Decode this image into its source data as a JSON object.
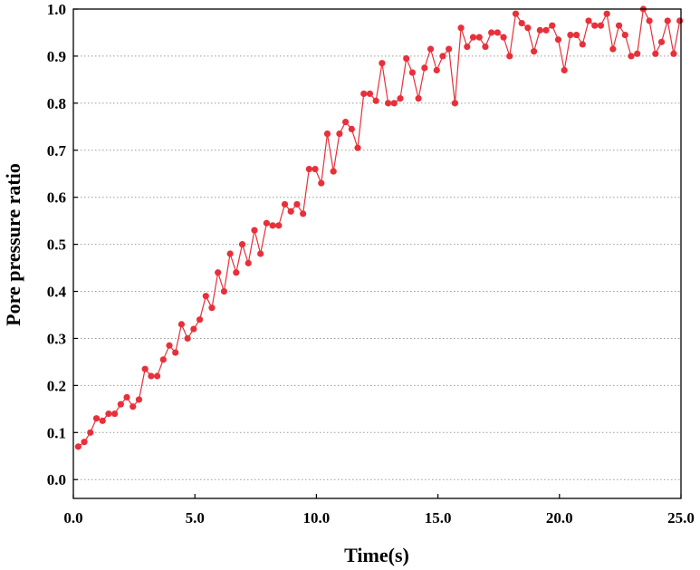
{
  "chart_data": {
    "type": "line",
    "xlabel": "Time(s)",
    "ylabel": "Pore pressure ratio",
    "xlim": [
      0,
      25
    ],
    "ylim": [
      -0.04,
      1.0
    ],
    "xticks": [
      0,
      5,
      10,
      15,
      20,
      25
    ],
    "xtick_labels": [
      "0.0",
      "5.0",
      "10.0",
      "15.0",
      "20.0",
      "25.0"
    ],
    "yticks": [
      0.0,
      0.1,
      0.2,
      0.3,
      0.4,
      0.5,
      0.6,
      0.7,
      0.8,
      0.9,
      1.0
    ],
    "ytick_labels": [
      "0.0",
      "0.1",
      "0.2",
      "0.3",
      "0.4",
      "0.5",
      "0.6",
      "0.7",
      "0.8",
      "0.9",
      "1.0"
    ],
    "grid": "horizontal dotted",
    "series": [
      {
        "color": "#e8303a",
        "marker": "circle",
        "x": [
          0.2,
          0.45,
          0.7,
          0.95,
          1.2,
          1.45,
          1.7,
          1.95,
          2.2,
          2.45,
          2.7,
          2.95,
          3.2,
          3.45,
          3.7,
          3.95,
          4.2,
          4.45,
          4.7,
          4.95,
          5.2,
          5.45,
          5.7,
          5.95,
          6.2,
          6.45,
          6.7,
          6.95,
          7.2,
          7.45,
          7.7,
          7.95,
          8.2,
          8.45,
          8.7,
          8.95,
          9.2,
          9.45,
          9.7,
          9.95,
          10.2,
          10.45,
          10.7,
          10.95,
          11.2,
          11.45,
          11.7,
          11.95,
          12.2,
          12.45,
          12.7,
          12.95,
          13.2,
          13.45,
          13.7,
          13.95,
          14.2,
          14.45,
          14.7,
          14.95,
          15.2,
          15.45,
          15.7,
          15.95,
          16.2,
          16.45,
          16.7,
          16.95,
          17.2,
          17.45,
          17.7,
          17.95,
          18.2,
          18.45,
          18.7,
          18.95,
          19.2,
          19.45,
          19.7,
          19.95,
          20.2,
          20.45,
          20.7,
          20.95,
          21.2,
          21.45,
          21.7,
          21.95,
          22.2,
          22.45,
          22.7,
          22.95,
          23.2,
          23.45,
          23.7,
          23.95,
          24.2,
          24.45,
          24.7,
          24.95
        ],
        "y": [
          0.07,
          0.08,
          0.1,
          0.13,
          0.125,
          0.14,
          0.14,
          0.16,
          0.175,
          0.155,
          0.17,
          0.235,
          0.22,
          0.22,
          0.255,
          0.285,
          0.27,
          0.33,
          0.3,
          0.32,
          0.34,
          0.39,
          0.365,
          0.44,
          0.4,
          0.48,
          0.44,
          0.5,
          0.46,
          0.53,
          0.48,
          0.545,
          0.54,
          0.54,
          0.585,
          0.57,
          0.585,
          0.565,
          0.66,
          0.66,
          0.63,
          0.735,
          0.655,
          0.735,
          0.76,
          0.745,
          0.705,
          0.82,
          0.82,
          0.805,
          0.885,
          0.8,
          0.8,
          0.81,
          0.895,
          0.865,
          0.81,
          0.875,
          0.915,
          0.87,
          0.9,
          0.915,
          0.8,
          0.96,
          0.92,
          0.94,
          0.94,
          0.92,
          0.95,
          0.95,
          0.94,
          0.9,
          0.99,
          0.97,
          0.96,
          0.91,
          0.955,
          0.955,
          0.965,
          0.935,
          0.87,
          0.945,
          0.945,
          0.925,
          0.975,
          0.965,
          0.965,
          0.99,
          0.915,
          0.965,
          0.945,
          0.9,
          0.905,
          1.0,
          0.975,
          0.905,
          0.93,
          0.975,
          0.905,
          0.975
        ]
      }
    ]
  }
}
